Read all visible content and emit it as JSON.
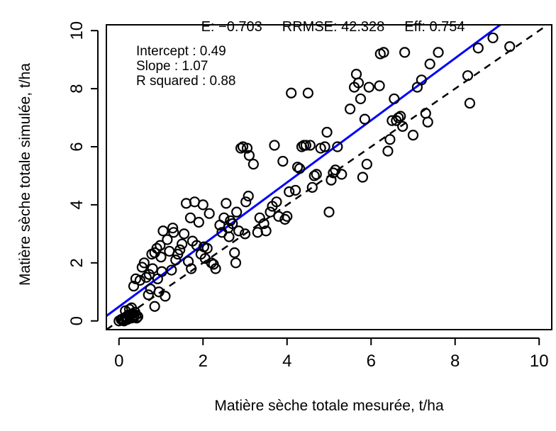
{
  "stats": {
    "e_label": "E: −0.703",
    "rrmse_label": "RRMSE: 42.328",
    "eff_label": "Eff: 0.754"
  },
  "fit": {
    "intercept_label": "Intercept : 0.49",
    "slope_label": "Slope : 1.07",
    "r2_label": "R squared : 0.88"
  },
  "chart_data": {
    "type": "scatter",
    "xlabel": "Matière sèche totale mesurée, t/ha",
    "ylabel": "Matière sèche totale simulée, t/ha",
    "xlim": [
      -0.3,
      10.3
    ],
    "ylim": [
      -0.3,
      10.2
    ],
    "xticks": [
      "0",
      "2",
      "4",
      "6",
      "8",
      "10"
    ],
    "yticks": [
      "0",
      "2",
      "4",
      "6",
      "8",
      "10"
    ],
    "grid": false,
    "fit_line": {
      "intercept": 0.49,
      "slope": 1.07,
      "color": "#0000FF",
      "style": "solid"
    },
    "identity_line": {
      "intercept": 0,
      "slope": 1,
      "color": "#000000",
      "style": "dashed"
    },
    "point_color": "#000000",
    "points": [
      [
        0.0,
        0.0
      ],
      [
        0.05,
        0.05
      ],
      [
        0.08,
        0.03
      ],
      [
        0.1,
        0.08
      ],
      [
        0.12,
        0.0
      ],
      [
        0.15,
        0.1
      ],
      [
        0.18,
        0.15
      ],
      [
        0.2,
        0.05
      ],
      [
        0.22,
        0.2
      ],
      [
        0.25,
        0.15
      ],
      [
        0.28,
        0.22
      ],
      [
        0.3,
        0.1
      ],
      [
        0.32,
        0.25
      ],
      [
        0.35,
        0.18
      ],
      [
        0.38,
        0.3
      ],
      [
        0.4,
        0.2
      ],
      [
        0.15,
        0.35
      ],
      [
        0.25,
        0.4
      ],
      [
        0.3,
        0.45
      ],
      [
        0.35,
        0.12
      ],
      [
        0.42,
        0.1
      ],
      [
        0.45,
        0.15
      ],
      [
        0.35,
        1.2
      ],
      [
        0.4,
        1.45
      ],
      [
        0.5,
        1.4
      ],
      [
        0.55,
        1.85
      ],
      [
        0.6,
        2.0
      ],
      [
        0.65,
        1.5
      ],
      [
        0.7,
        0.9
      ],
      [
        0.72,
        1.6
      ],
      [
        0.75,
        1.1
      ],
      [
        0.78,
        2.3
      ],
      [
        0.8,
        1.8
      ],
      [
        0.85,
        2.35
      ],
      [
        0.85,
        0.5
      ],
      [
        0.9,
        2.5
      ],
      [
        0.92,
        1.45
      ],
      [
        0.95,
        1.0
      ],
      [
        0.98,
        2.6
      ],
      [
        1.0,
        2.2
      ],
      [
        1.02,
        1.7
      ],
      [
        1.05,
        3.1
      ],
      [
        1.1,
        0.85
      ],
      [
        1.15,
        2.8
      ],
      [
        1.2,
        2.4
      ],
      [
        1.25,
        1.75
      ],
      [
        1.28,
        3.2
      ],
      [
        1.3,
        3.05
      ],
      [
        1.35,
        2.1
      ],
      [
        1.4,
        2.3
      ],
      [
        1.45,
        2.45
      ],
      [
        1.5,
        2.65
      ],
      [
        1.55,
        3.0
      ],
      [
        1.6,
        4.05
      ],
      [
        1.65,
        2.05
      ],
      [
        1.7,
        3.55
      ],
      [
        1.72,
        1.8
      ],
      [
        1.75,
        2.75
      ],
      [
        1.8,
        4.1
      ],
      [
        1.85,
        2.6
      ],
      [
        1.9,
        3.4
      ],
      [
        1.95,
        2.3
      ],
      [
        2.0,
        4.0
      ],
      [
        2.02,
        2.55
      ],
      [
        2.05,
        2.15
      ],
      [
        2.1,
        2.5
      ],
      [
        2.15,
        3.7
      ],
      [
        2.2,
        2.0
      ],
      [
        2.25,
        1.95
      ],
      [
        2.3,
        1.8
      ],
      [
        2.4,
        3.3
      ],
      [
        2.45,
        3.05
      ],
      [
        2.5,
        3.55
      ],
      [
        2.55,
        4.05
      ],
      [
        2.6,
        3.2
      ],
      [
        2.62,
        2.9
      ],
      [
        2.65,
        3.45
      ],
      [
        2.7,
        3.35
      ],
      [
        2.75,
        2.35
      ],
      [
        2.78,
        2.0
      ],
      [
        2.8,
        3.75
      ],
      [
        2.85,
        3.1
      ],
      [
        2.9,
        5.95
      ],
      [
        2.95,
        6.0
      ],
      [
        3.0,
        3.0
      ],
      [
        3.02,
        4.1
      ],
      [
        3.05,
        5.95
      ],
      [
        3.08,
        4.3
      ],
      [
        3.1,
        5.7
      ],
      [
        3.2,
        5.4
      ],
      [
        3.3,
        3.05
      ],
      [
        3.35,
        3.55
      ],
      [
        3.45,
        3.35
      ],
      [
        3.5,
        3.1
      ],
      [
        3.6,
        3.75
      ],
      [
        3.65,
        3.95
      ],
      [
        3.7,
        6.05
      ],
      [
        3.75,
        4.1
      ],
      [
        3.8,
        3.6
      ],
      [
        3.9,
        5.5
      ],
      [
        3.95,
        3.5
      ],
      [
        4.0,
        3.6
      ],
      [
        4.05,
        4.45
      ],
      [
        4.1,
        7.85
      ],
      [
        4.2,
        4.5
      ],
      [
        4.25,
        5.3
      ],
      [
        4.3,
        5.25
      ],
      [
        4.35,
        6.0
      ],
      [
        4.4,
        6.05
      ],
      [
        4.45,
        6.05
      ],
      [
        4.5,
        7.85
      ],
      [
        4.55,
        6.05
      ],
      [
        4.6,
        4.6
      ],
      [
        4.65,
        5.0
      ],
      [
        4.7,
        5.05
      ],
      [
        4.8,
        5.95
      ],
      [
        4.9,
        6.0
      ],
      [
        4.95,
        6.5
      ],
      [
        5.0,
        3.75
      ],
      [
        5.05,
        4.85
      ],
      [
        5.1,
        5.1
      ],
      [
        5.15,
        5.2
      ],
      [
        5.2,
        6.0
      ],
      [
        5.3,
        5.05
      ],
      [
        5.5,
        7.3
      ],
      [
        5.6,
        8.05
      ],
      [
        5.65,
        8.5
      ],
      [
        5.7,
        8.2
      ],
      [
        5.75,
        7.65
      ],
      [
        5.8,
        4.95
      ],
      [
        5.85,
        6.95
      ],
      [
        5.9,
        5.4
      ],
      [
        5.95,
        8.05
      ],
      [
        6.2,
        8.1
      ],
      [
        6.22,
        9.2
      ],
      [
        6.3,
        9.25
      ],
      [
        6.4,
        5.85
      ],
      [
        6.45,
        6.25
      ],
      [
        6.5,
        6.9
      ],
      [
        6.55,
        7.65
      ],
      [
        6.6,
        6.9
      ],
      [
        6.65,
        7.0
      ],
      [
        6.7,
        7.05
      ],
      [
        6.75,
        6.7
      ],
      [
        6.8,
        9.25
      ],
      [
        7.0,
        6.4
      ],
      [
        7.1,
        8.05
      ],
      [
        7.2,
        8.3
      ],
      [
        7.3,
        7.15
      ],
      [
        7.35,
        6.85
      ],
      [
        7.4,
        8.85
      ],
      [
        7.6,
        9.25
      ],
      [
        8.3,
        8.45
      ],
      [
        8.35,
        7.5
      ],
      [
        8.55,
        9.4
      ],
      [
        8.9,
        9.75
      ],
      [
        9.3,
        9.45
      ]
    ]
  }
}
